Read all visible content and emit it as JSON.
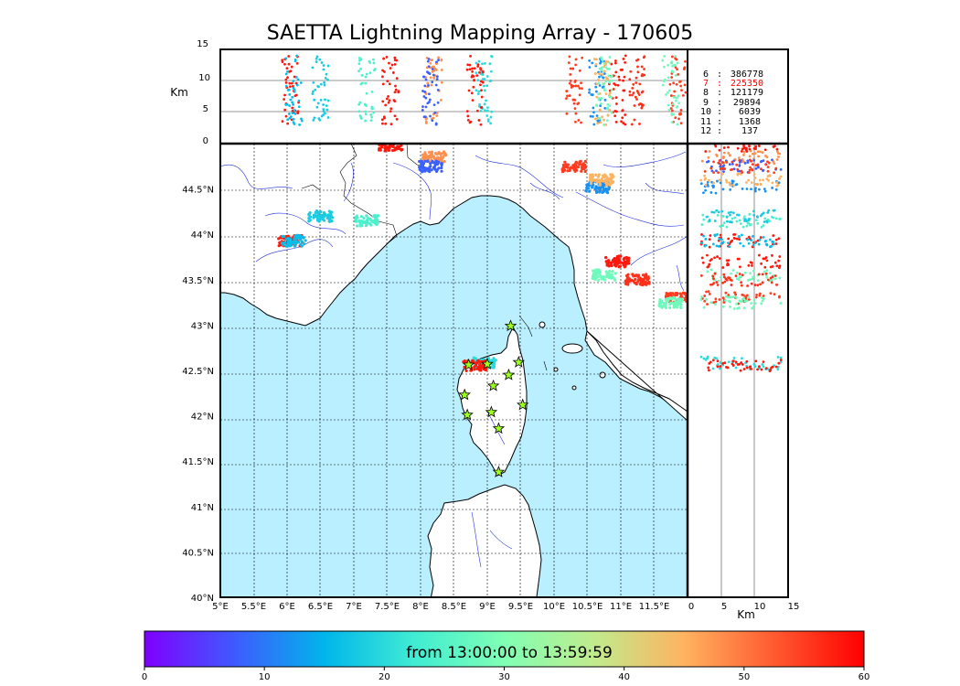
{
  "title": "SAETTA Lightning Mapping Array - 170605",
  "top_panel": {
    "ylabel": "Km",
    "yticks": [
      "15",
      "10",
      "5",
      "0"
    ],
    "counts": [
      {
        "level": "6",
        "sep": ":",
        "count": "386778",
        "color": "#000000"
      },
      {
        "level": "7",
        "sep": ":",
        "count": "225350",
        "color": "#ff0000"
      },
      {
        "level": "8",
        "sep": ":",
        "count": "121179",
        "color": "#000000"
      },
      {
        "level": "9",
        "sep": ":",
        "count": "29894",
        "color": "#000000"
      },
      {
        "level": "10",
        "sep": ":",
        "count": "6039",
        "color": "#000000"
      },
      {
        "level": "11",
        "sep": ":",
        "count": "1368",
        "color": "#000000"
      },
      {
        "level": "12",
        "sep": ":",
        "count": "137",
        "color": "#000000"
      }
    ]
  },
  "map": {
    "lon_ticks": [
      "5°E",
      "5.5°E",
      "6°E",
      "6.5°E",
      "7°E",
      "7.5°E",
      "8°E",
      "8.5°E",
      "9°E",
      "9.5°E",
      "10°E",
      "10.5°E",
      "11°E",
      "11.5°E"
    ],
    "lat_ticks": [
      "44.5°N",
      "44°N",
      "43.5°N",
      "43°N",
      "42.5°N",
      "42°N",
      "41.5°N",
      "41°N",
      "40.5°N",
      "40°N"
    ],
    "lon_range": [
      5,
      12
    ],
    "lat_range": [
      40,
      45
    ],
    "sea_color": "#b9efff",
    "land_color": "#ffffff",
    "stations": [
      {
        "lon": 9.35,
        "lat": 42.99
      },
      {
        "lon": 8.72,
        "lat": 42.56
      },
      {
        "lon": 9.0,
        "lat": 42.57
      },
      {
        "lon": 9.47,
        "lat": 42.59
      },
      {
        "lon": 9.32,
        "lat": 42.45
      },
      {
        "lon": 9.09,
        "lat": 42.33
      },
      {
        "lon": 8.66,
        "lat": 42.23
      },
      {
        "lon": 9.53,
        "lat": 42.12
      },
      {
        "lon": 9.06,
        "lat": 42.04
      },
      {
        "lon": 8.7,
        "lat": 42.01
      },
      {
        "lon": 9.17,
        "lat": 41.86
      },
      {
        "lon": 9.17,
        "lat": 41.38
      }
    ],
    "lightning_clusters": [
      {
        "lon": 8.95,
        "lat": 42.58,
        "time": 20
      },
      {
        "lon": 8.82,
        "lat": 42.55,
        "time": 58
      },
      {
        "lon": 10.65,
        "lat": 44.52,
        "time": 12
      },
      {
        "lon": 10.72,
        "lat": 44.6,
        "time": 45
      },
      {
        "lon": 10.95,
        "lat": 43.7,
        "time": 58
      },
      {
        "lon": 10.75,
        "lat": 43.55,
        "time": 28
      },
      {
        "lon": 11.25,
        "lat": 43.5,
        "time": 56
      },
      {
        "lon": 11.85,
        "lat": 43.3,
        "time": 55
      },
      {
        "lon": 11.75,
        "lat": 43.25,
        "time": 28
      },
      {
        "lon": 8.2,
        "lat": 44.85,
        "time": 48
      },
      {
        "lon": 8.15,
        "lat": 44.75,
        "time": 8
      },
      {
        "lon": 7.2,
        "lat": 44.15,
        "time": 24
      },
      {
        "lon": 6.5,
        "lat": 44.2,
        "time": 18
      },
      {
        "lon": 6.05,
        "lat": 43.93,
        "time": 58
      },
      {
        "lon": 6.1,
        "lat": 43.93,
        "time": 16
      },
      {
        "lon": 10.3,
        "lat": 44.75,
        "time": 55
      },
      {
        "lon": 7.55,
        "lat": 44.98,
        "time": 58
      }
    ]
  },
  "right_panel": {
    "xlabel": "Km",
    "xticks": [
      "0",
      "5",
      "10",
      "15"
    ]
  },
  "colorbar": {
    "label": "from 13:00:00 to 13:59:59",
    "ticks": [
      "0",
      "10",
      "20",
      "30",
      "40",
      "50",
      "60"
    ],
    "range": [
      0,
      60
    ],
    "colormap": [
      "#7f00ff",
      "#3f5afe",
      "#00b5eb",
      "#40ecd3",
      "#80ffb4",
      "#c0eb8d",
      "#ffb360",
      "#ff5a30",
      "#ff0000"
    ]
  }
}
